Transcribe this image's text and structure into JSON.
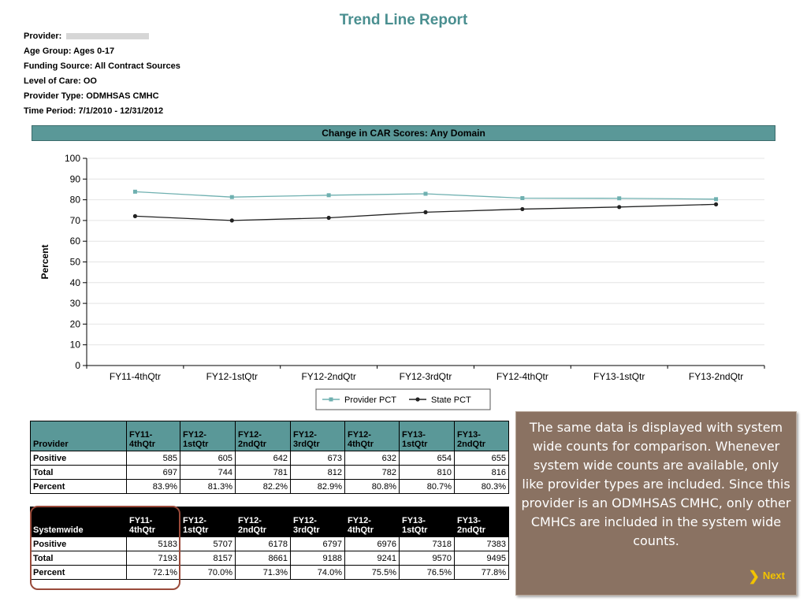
{
  "report": {
    "title": "Trend Line Report",
    "meta": [
      {
        "label": "Provider:",
        "value": ""
      },
      {
        "label": "Age Group:",
        "value": "Ages 0-17"
      },
      {
        "label": "Funding Source:",
        "value": "All Contract Sources"
      },
      {
        "label": "Level of Care:",
        "value": "OO"
      },
      {
        "label": "Provider Type:",
        "value": "ODMHSAS CMHC"
      },
      {
        "label": "Time Period:",
        "value": "7/1/2010 - 12/31/2012"
      }
    ]
  },
  "chart_data": {
    "type": "line",
    "title": "Change in CAR Scores: Any Domain",
    "xlabel": "",
    "ylabel": "Percent",
    "ylim": [
      0,
      100
    ],
    "yticks": [
      0,
      10,
      20,
      30,
      40,
      50,
      60,
      70,
      80,
      90,
      100
    ],
    "categories": [
      "FY11-4thQtr",
      "FY12-1stQtr",
      "FY12-2ndQtr",
      "FY12-3rdQtr",
      "FY12-4thQtr",
      "FY13-1stQtr",
      "FY13-2ndQtr"
    ],
    "series": [
      {
        "name": "Provider PCT",
        "color": "#6fb0b0",
        "values": [
          83.9,
          81.3,
          82.2,
          82.9,
          80.8,
          80.7,
          80.3
        ]
      },
      {
        "name": "State PCT",
        "color": "#222222",
        "values": [
          72.1,
          70.0,
          71.3,
          74.0,
          75.5,
          76.5,
          77.8
        ]
      }
    ],
    "grid": true,
    "legend": "bottom-center"
  },
  "provider_table": {
    "header": "Provider",
    "columns": [
      "FY11-\n4thQtr",
      "FY12-\n1stQtr",
      "FY12-\n2ndQtr",
      "FY12-\n3rdQtr",
      "FY12-\n4thQtr",
      "FY13-\n1stQtr",
      "FY13-\n2ndQtr"
    ],
    "rows": [
      {
        "label": "Positive",
        "values": [
          "585",
          "605",
          "642",
          "673",
          "632",
          "654",
          "655"
        ]
      },
      {
        "label": "Total",
        "values": [
          "697",
          "744",
          "781",
          "812",
          "782",
          "810",
          "816"
        ]
      },
      {
        "label": "Percent",
        "values": [
          "83.9%",
          "81.3%",
          "82.2%",
          "82.9%",
          "80.8%",
          "80.7%",
          "80.3%"
        ]
      }
    ]
  },
  "system_table": {
    "header": "Systemwide",
    "columns": [
      "FY11-\n4thQtr",
      "FY12-\n1stQtr",
      "FY12-\n2ndQtr",
      "FY12-\n3rdQtr",
      "FY12-\n4thQtr",
      "FY13-\n1stQtr",
      "FY13-\n2ndQtr"
    ],
    "rows": [
      {
        "label": "Positive",
        "values": [
          "5183",
          "5707",
          "6178",
          "6797",
          "6976",
          "7318",
          "7383"
        ]
      },
      {
        "label": "Total",
        "values": [
          "7193",
          "8157",
          "8661",
          "9188",
          "9241",
          "9570",
          "9495"
        ]
      },
      {
        "label": "Percent",
        "values": [
          "72.1%",
          "70.0%",
          "71.3%",
          "74.0%",
          "75.5%",
          "76.5%",
          "77.8%"
        ]
      }
    ]
  },
  "callout": {
    "text": "The same data is displayed with system wide counts for comparison. Whenever system wide counts are available, only like provider types are included.  Since this provider is an ODMHSAS CMHC, only other CMHCs are included in the system wide counts.",
    "next_label": "Next",
    "next_icon": "chevron-right-icon",
    "background": "#8a7262",
    "next_color": "#f2c300"
  }
}
